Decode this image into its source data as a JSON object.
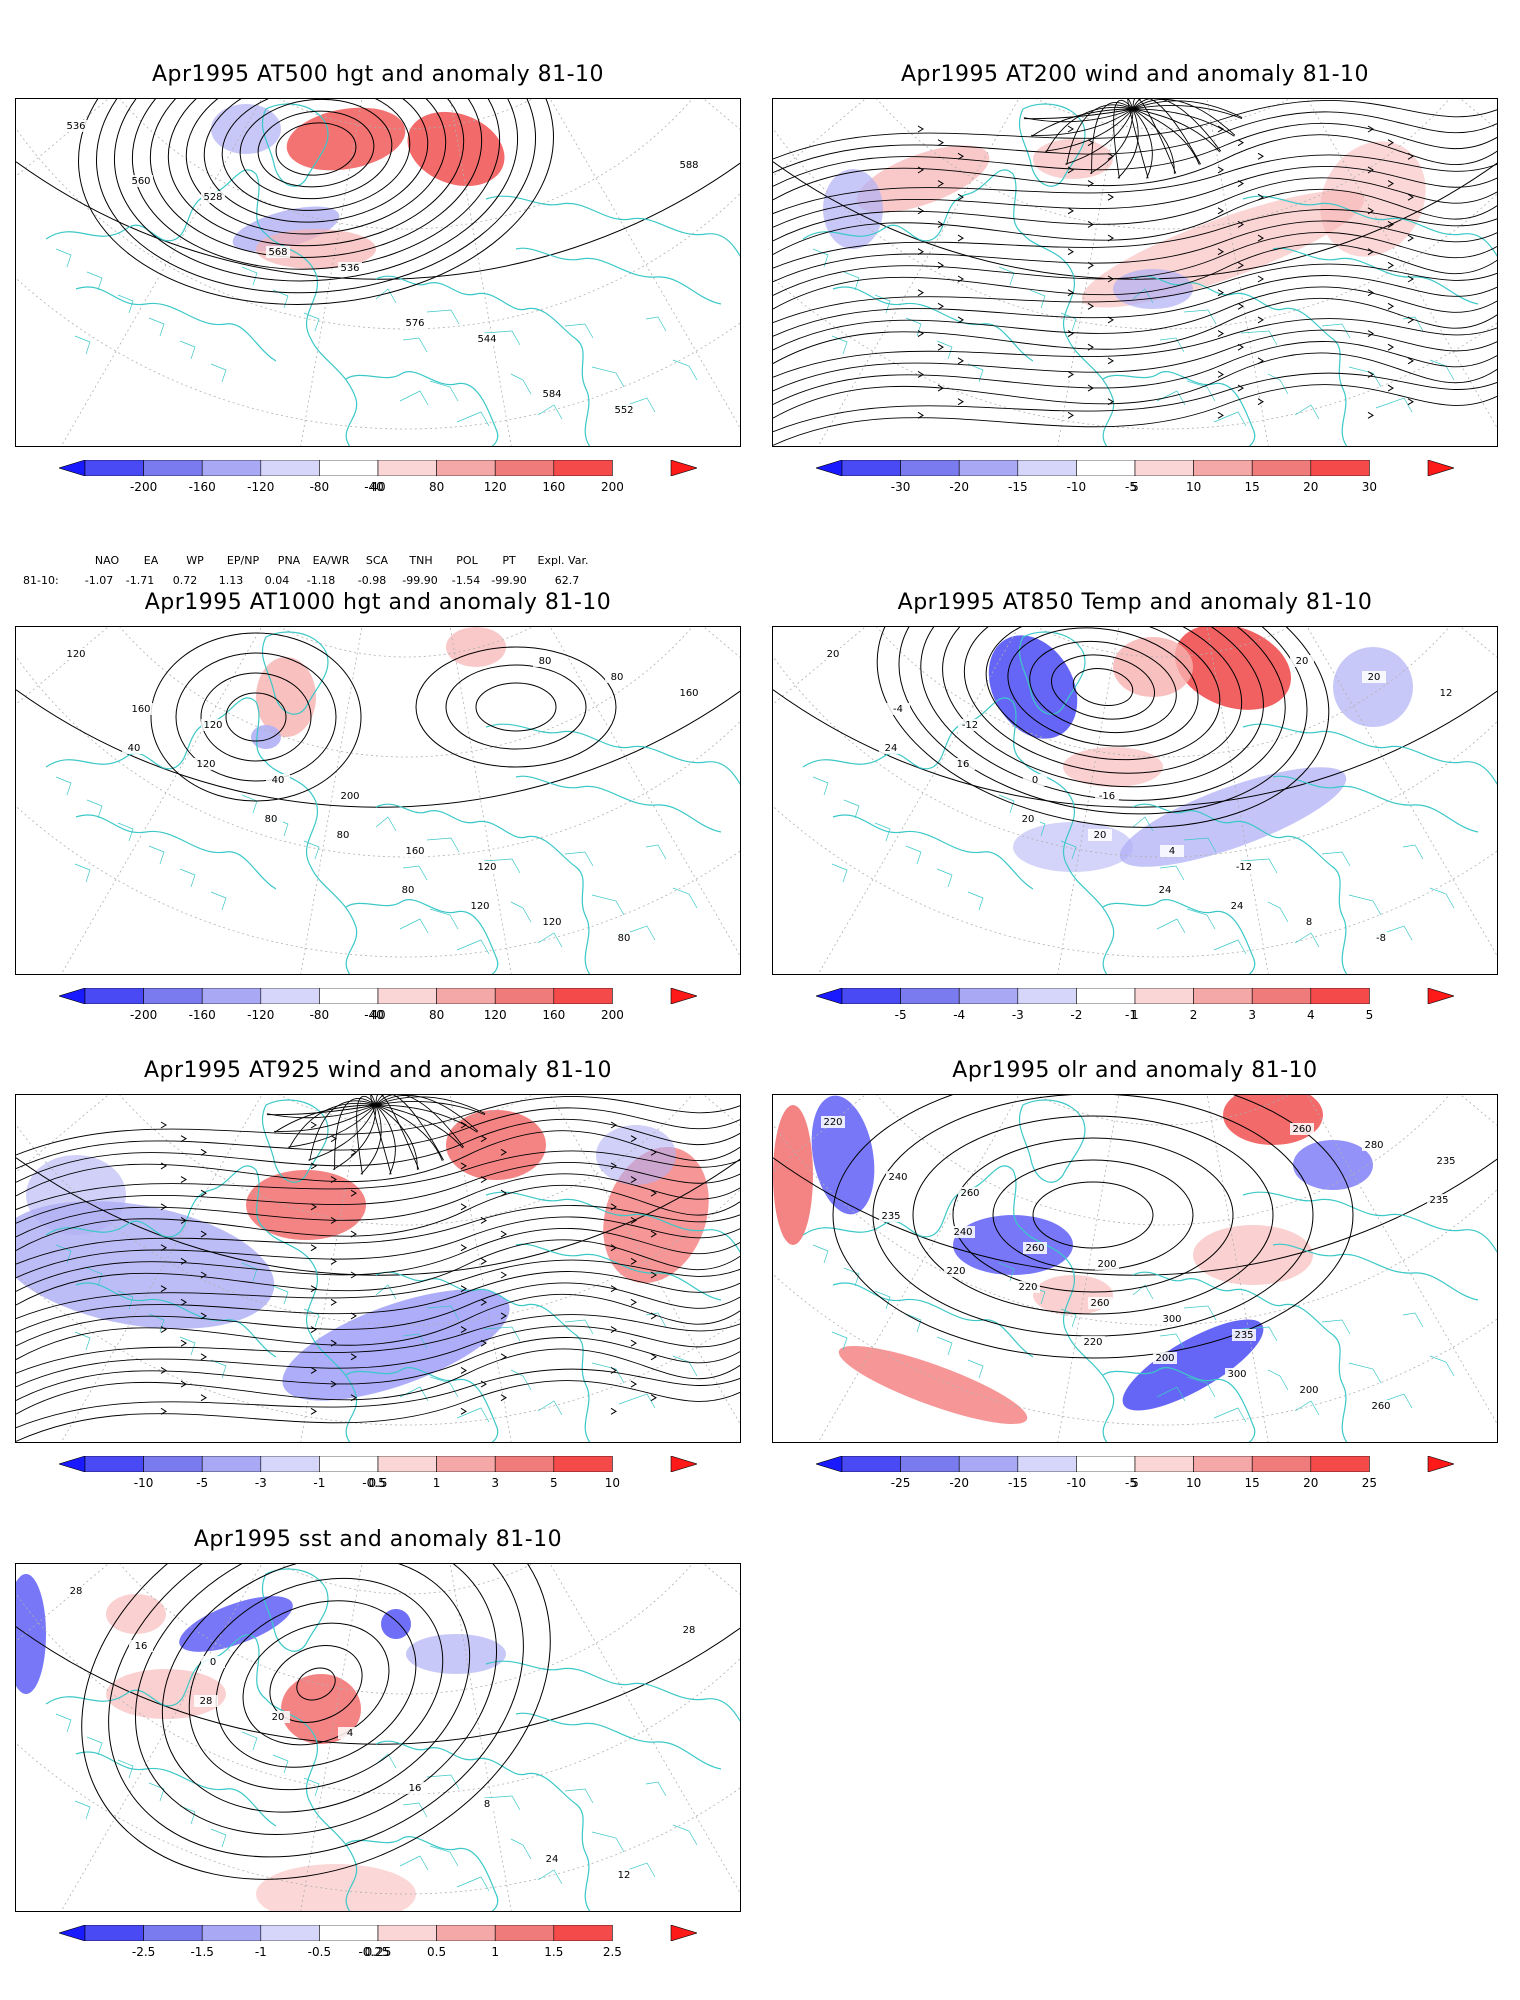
{
  "panels": [
    {
      "id": "p1",
      "title": "Apr1995 AT500 hgt and anomaly 81-10",
      "map_kind": "contour_anomaly",
      "contour_labels": [
        "536",
        "528",
        "536",
        "544",
        "552",
        "560",
        "568",
        "576",
        "584",
        "588"
      ],
      "colorbar": {
        "ticks": [
          "-200",
          "-160",
          "-120",
          "-80",
          "-40",
          "40",
          "80",
          "120",
          "160",
          "200"
        ],
        "colors": [
          "#1a1aff",
          "#4a4af5",
          "#7b7bf0",
          "#a8a8f5",
          "#d6d6fa",
          "#ffffff",
          "#fad6d6",
          "#f5a8a8",
          "#f07b7b",
          "#f54a4a",
          "#ff1a1a"
        ]
      }
    },
    {
      "id": "p2",
      "title": "Apr1995 AT200 wind and anomaly 81-10",
      "map_kind": "streamline_anomaly",
      "contour_labels": [],
      "colorbar": {
        "ticks": [
          "-30",
          "-20",
          "-15",
          "-10",
          "-5",
          "5",
          "10",
          "15",
          "20",
          "30"
        ],
        "colors": [
          "#1a1aff",
          "#4a4af5",
          "#7b7bf0",
          "#a8a8f5",
          "#d6d6fa",
          "#ffffff",
          "#fad6d6",
          "#f5a8a8",
          "#f07b7b",
          "#f54a4a",
          "#ff1a1a"
        ]
      }
    },
    {
      "id": "p3",
      "title": "Apr1995 AT1000 hgt and anomaly 81-10",
      "map_kind": "contour_anomaly",
      "contour_labels": [
        "120",
        "120",
        "200",
        "120",
        "80",
        "160",
        "40",
        "160",
        "120",
        "160",
        "120",
        "80",
        "120",
        "80",
        "40",
        "80",
        "80",
        "80"
      ],
      "colorbar": {
        "ticks": [
          "-200",
          "-160",
          "-120",
          "-80",
          "-40",
          "40",
          "80",
          "120",
          "160",
          "200"
        ],
        "colors": [
          "#1a1aff",
          "#4a4af5",
          "#7b7bf0",
          "#a8a8f5",
          "#d6d6fa",
          "#ffffff",
          "#fad6d6",
          "#f5a8a8",
          "#f07b7b",
          "#f54a4a",
          "#ff1a1a"
        ]
      }
    },
    {
      "id": "p4",
      "title": "Apr1995 AT850 Temp and anomaly 81-10",
      "map_kind": "contour_anomaly",
      "contour_labels": [
        "20",
        "-12",
        "-16",
        "-12",
        "-8",
        "-4",
        "0",
        "4",
        "8",
        "12",
        "16",
        "20",
        "24",
        "20",
        "24",
        "20",
        "24",
        "20"
      ],
      "colorbar": {
        "ticks": [
          "-5",
          "-4",
          "-3",
          "-2",
          "-1",
          "1",
          "2",
          "3",
          "4",
          "5"
        ],
        "colors": [
          "#1a1aff",
          "#4a4af5",
          "#7b7bf0",
          "#a8a8f5",
          "#d6d6fa",
          "#ffffff",
          "#fad6d6",
          "#f5a8a8",
          "#f07b7b",
          "#f54a4a",
          "#ff1a1a"
        ]
      }
    },
    {
      "id": "p5",
      "title": "Apr1995 AT925 wind and anomaly 81-10",
      "map_kind": "streamline_anomaly",
      "contour_labels": [],
      "colorbar": {
        "ticks": [
          "-10",
          "-5",
          "-3",
          "-1",
          "-0.5",
          "0.5",
          "1",
          "3",
          "5",
          "10"
        ],
        "colors": [
          "#1a1aff",
          "#4a4af5",
          "#7b7bf0",
          "#a8a8f5",
          "#d6d6fa",
          "#ffffff",
          "#fad6d6",
          "#f5a8a8",
          "#f07b7b",
          "#f54a4a",
          "#ff1a1a"
        ]
      }
    },
    {
      "id": "p6",
      "title": "Apr1995 olr and anomaly 81-10",
      "map_kind": "contour_anomaly",
      "contour_labels": [
        "220",
        "260",
        "200",
        "235",
        "260",
        "240",
        "260",
        "300",
        "200",
        "235",
        "240",
        "260",
        "300",
        "280",
        "235",
        "220",
        "200",
        "260",
        "235",
        "220",
        "220"
      ],
      "colorbar": {
        "ticks": [
          "-25",
          "-20",
          "-15",
          "-10",
          "-5",
          "5",
          "10",
          "15",
          "20",
          "25"
        ],
        "colors": [
          "#1a1aff",
          "#4a4af5",
          "#7b7bf0",
          "#a8a8f5",
          "#d6d6fa",
          "#ffffff",
          "#fad6d6",
          "#f5a8a8",
          "#f07b7b",
          "#f54a4a",
          "#ff1a1a"
        ]
      }
    },
    {
      "id": "p7",
      "title": "Apr1995 sst and anomaly 81-10",
      "map_kind": "contour_anomaly",
      "contour_labels": [
        "28",
        "0",
        "4",
        "8",
        "12",
        "16",
        "20",
        "16",
        "24",
        "28",
        "28"
      ],
      "colorbar": {
        "ticks": [
          "-2.5",
          "-1.5",
          "-1",
          "-0.5",
          "-0.25",
          "0.25",
          "0.5",
          "1",
          "1.5",
          "2.5"
        ],
        "colors": [
          "#1a1aff",
          "#4a4af5",
          "#7b7bf0",
          "#a8a8f5",
          "#d6d6fa",
          "#ffffff",
          "#fad6d6",
          "#f5a8a8",
          "#f07b7b",
          "#f54a4a",
          "#ff1a1a"
        ]
      }
    }
  ],
  "teleconnection": {
    "row_label": "81-10:",
    "headers": [
      "NAO",
      "EA",
      "WP",
      "EP/NP",
      "PNA",
      "EA/WR",
      "SCA",
      "TNH",
      "POL",
      "PT",
      "Expl. Var."
    ],
    "values": [
      "-1.07",
      "-1.71",
      "0.72",
      "1.13",
      "0.04",
      "-1.18",
      "-0.98",
      "-99.90",
      "-1.54",
      "-99.90",
      "62.7"
    ]
  },
  "colors": {
    "coast": "#3cc8c8",
    "contour": "#000000",
    "grid": "#b0b0b0"
  }
}
